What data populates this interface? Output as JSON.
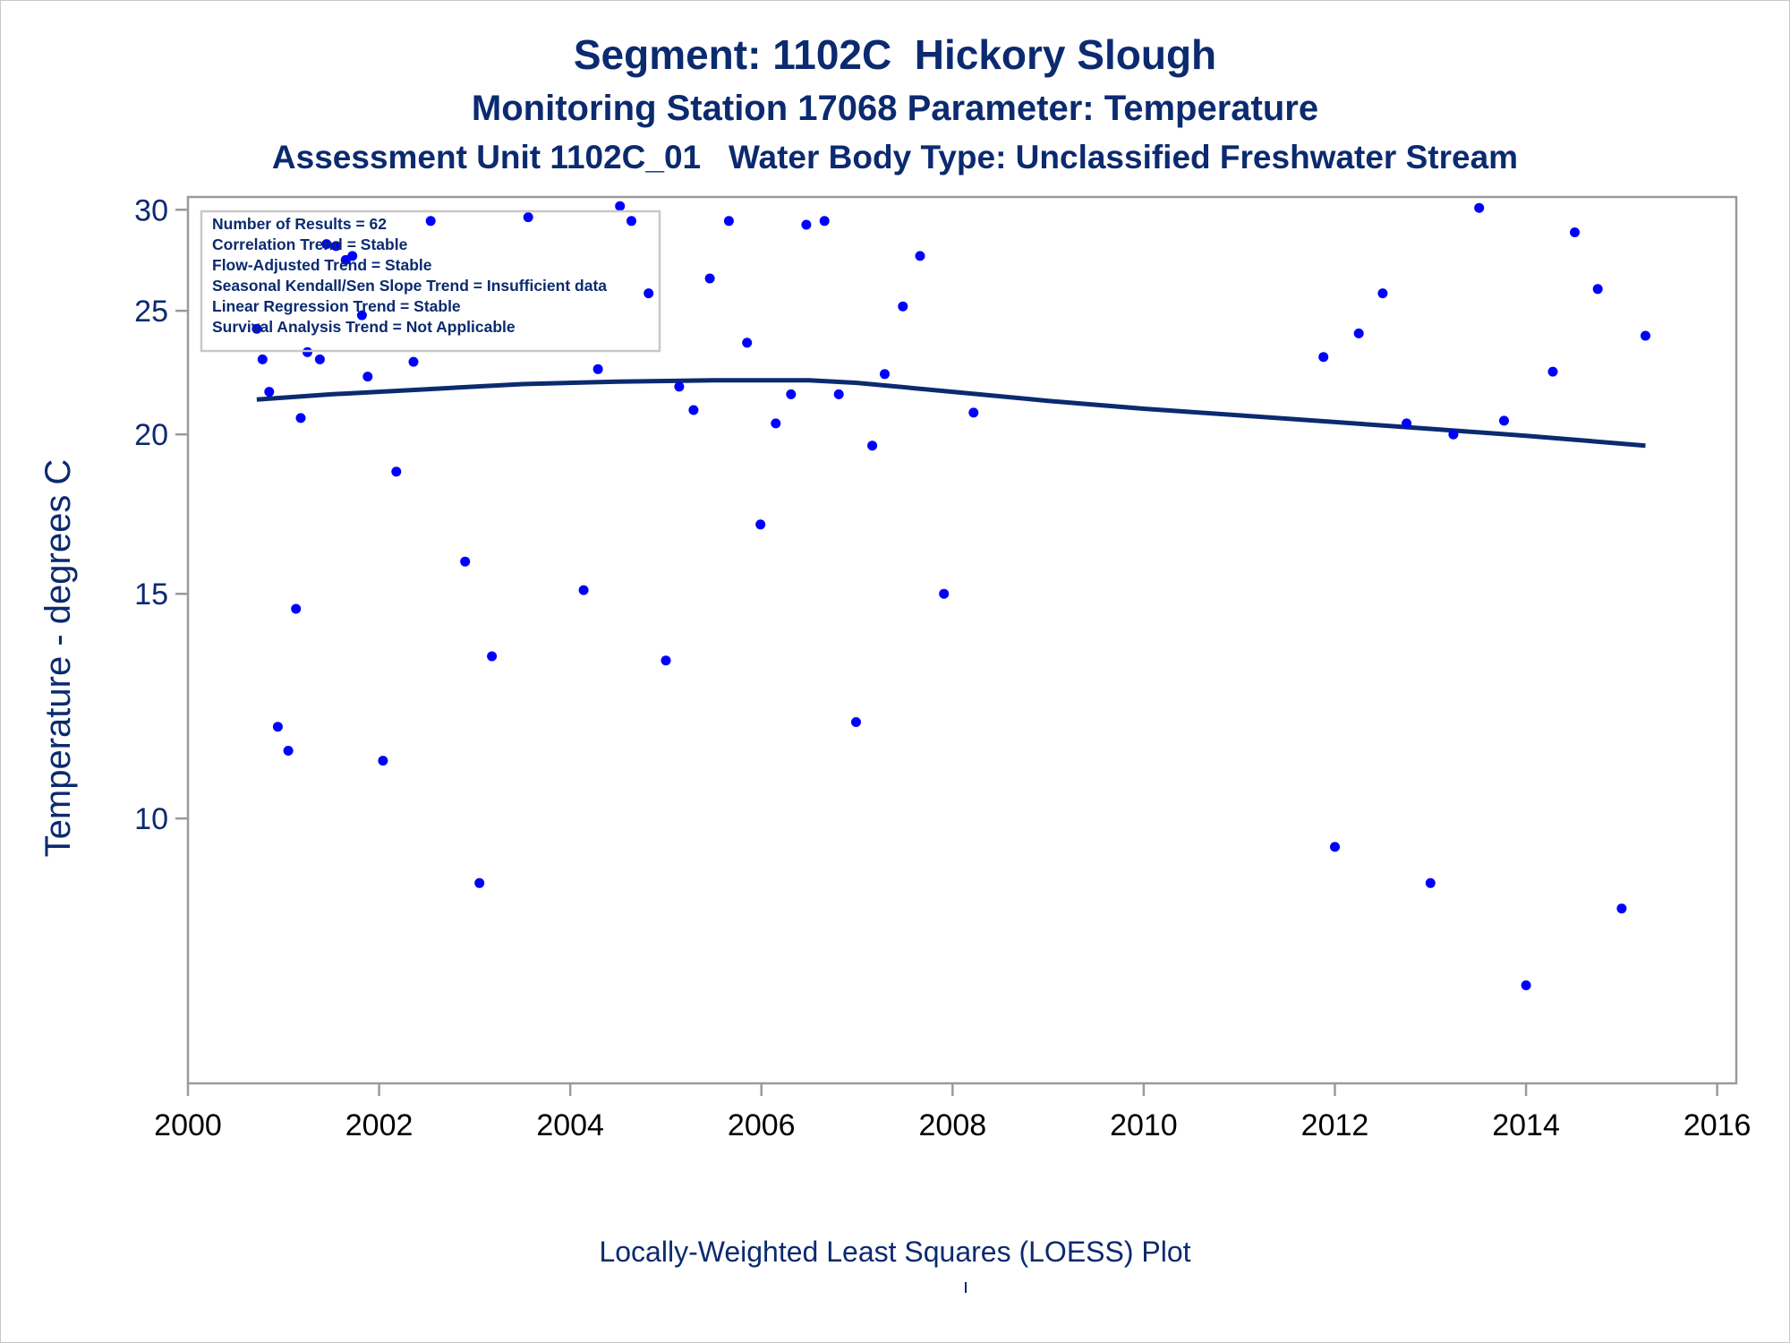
{
  "titles": {
    "line1": "Segment: 1102C  Hickory Slough",
    "line2": "Monitoring Station 17068 Parameter: Temperature",
    "line3": "Assessment Unit 1102C_01   Water Body Type: Unclassified Freshwater Stream"
  },
  "footnote": "Locally-Weighted Least Squares (LOESS) Plot",
  "colors": {
    "title": "#0b2a6f",
    "points": "#0000ff",
    "loess": "#0b2a6f",
    "frame": "#9a9a9a"
  },
  "stats": [
    "Number of Results = 62",
    "Correlation Trend = Stable",
    "Flow-Adjusted Trend = Stable",
    "Seasonal Kendall/Sen Slope Trend = Insufficient data",
    "Linear Regression Trend = Stable",
    "Survival Analysis Trend = Not Applicable"
  ],
  "chart_data": {
    "type": "scatter",
    "ylabel": "Temperature - degrees C",
    "xlabel": "",
    "xlim": [
      2000,
      2016.2
    ],
    "ylim": [
      6.2,
      30.7
    ],
    "y_scale": "log",
    "x_ticks": [
      2000,
      2002,
      2004,
      2006,
      2008,
      2010,
      2012,
      2014,
      2016
    ],
    "y_ticks": [
      10,
      15,
      20,
      25,
      30
    ],
    "grid": false,
    "points": [
      {
        "x": 2000.72,
        "y": 24.2
      },
      {
        "x": 2000.78,
        "y": 22.9
      },
      {
        "x": 2000.85,
        "y": 21.6
      },
      {
        "x": 2000.94,
        "y": 11.8
      },
      {
        "x": 2001.05,
        "y": 11.3
      },
      {
        "x": 2001.13,
        "y": 14.6
      },
      {
        "x": 2001.18,
        "y": 20.6
      },
      {
        "x": 2001.25,
        "y": 23.2
      },
      {
        "x": 2001.38,
        "y": 22.9
      },
      {
        "x": 2001.45,
        "y": 28.2
      },
      {
        "x": 2001.55,
        "y": 28.1
      },
      {
        "x": 2001.65,
        "y": 27.4
      },
      {
        "x": 2001.72,
        "y": 27.6
      },
      {
        "x": 2001.82,
        "y": 24.8
      },
      {
        "x": 2001.88,
        "y": 22.2
      },
      {
        "x": 2002.04,
        "y": 11.1
      },
      {
        "x": 2002.18,
        "y": 18.7
      },
      {
        "x": 2002.36,
        "y": 22.8
      },
      {
        "x": 2002.54,
        "y": 29.4
      },
      {
        "x": 2002.9,
        "y": 15.9
      },
      {
        "x": 2003.05,
        "y": 8.9
      },
      {
        "x": 2003.18,
        "y": 13.4
      },
      {
        "x": 2003.56,
        "y": 29.6
      },
      {
        "x": 2004.14,
        "y": 15.1
      },
      {
        "x": 2004.29,
        "y": 22.5
      },
      {
        "x": 2004.52,
        "y": 30.2
      },
      {
        "x": 2004.64,
        "y": 29.4
      },
      {
        "x": 2004.82,
        "y": 25.8
      },
      {
        "x": 2005.0,
        "y": 13.3
      },
      {
        "x": 2005.14,
        "y": 21.8
      },
      {
        "x": 2005.29,
        "y": 20.9
      },
      {
        "x": 2005.46,
        "y": 26.5
      },
      {
        "x": 2005.66,
        "y": 29.4
      },
      {
        "x": 2005.85,
        "y": 23.6
      },
      {
        "x": 2005.99,
        "y": 17.0
      },
      {
        "x": 2006.15,
        "y": 20.4
      },
      {
        "x": 2006.31,
        "y": 21.5
      },
      {
        "x": 2006.47,
        "y": 29.2
      },
      {
        "x": 2006.66,
        "y": 29.4
      },
      {
        "x": 2006.81,
        "y": 21.5
      },
      {
        "x": 2006.99,
        "y": 11.9
      },
      {
        "x": 2007.16,
        "y": 19.6
      },
      {
        "x": 2007.29,
        "y": 22.3
      },
      {
        "x": 2007.48,
        "y": 25.2
      },
      {
        "x": 2007.66,
        "y": 27.6
      },
      {
        "x": 2007.91,
        "y": 15.0
      },
      {
        "x": 2008.22,
        "y": 20.8
      },
      {
        "x": 2011.88,
        "y": 23.0
      },
      {
        "x": 2012.0,
        "y": 9.5
      },
      {
        "x": 2012.25,
        "y": 24.0
      },
      {
        "x": 2012.5,
        "y": 25.8
      },
      {
        "x": 2012.75,
        "y": 20.4
      },
      {
        "x": 2013.0,
        "y": 8.9
      },
      {
        "x": 2013.24,
        "y": 20.0
      },
      {
        "x": 2013.51,
        "y": 30.1
      },
      {
        "x": 2013.77,
        "y": 20.5
      },
      {
        "x": 2014.0,
        "y": 7.4
      },
      {
        "x": 2014.28,
        "y": 22.4
      },
      {
        "x": 2014.51,
        "y": 28.8
      },
      {
        "x": 2014.75,
        "y": 26.0
      },
      {
        "x": 2015.0,
        "y": 8.5
      },
      {
        "x": 2015.25,
        "y": 23.9
      }
    ],
    "loess": [
      {
        "x": 2000.72,
        "y": 21.3
      },
      {
        "x": 2001.5,
        "y": 21.5
      },
      {
        "x": 2002.5,
        "y": 21.7
      },
      {
        "x": 2003.5,
        "y": 21.9
      },
      {
        "x": 2004.5,
        "y": 22.0
      },
      {
        "x": 2005.5,
        "y": 22.05
      },
      {
        "x": 2006.5,
        "y": 22.05
      },
      {
        "x": 2007.0,
        "y": 21.95
      },
      {
        "x": 2008.0,
        "y": 21.6
      },
      {
        "x": 2009.0,
        "y": 21.25
      },
      {
        "x": 2010.0,
        "y": 20.95
      },
      {
        "x": 2011.0,
        "y": 20.7
      },
      {
        "x": 2012.0,
        "y": 20.45
      },
      {
        "x": 2013.0,
        "y": 20.2
      },
      {
        "x": 2014.0,
        "y": 19.95
      },
      {
        "x": 2015.25,
        "y": 19.6
      }
    ]
  }
}
